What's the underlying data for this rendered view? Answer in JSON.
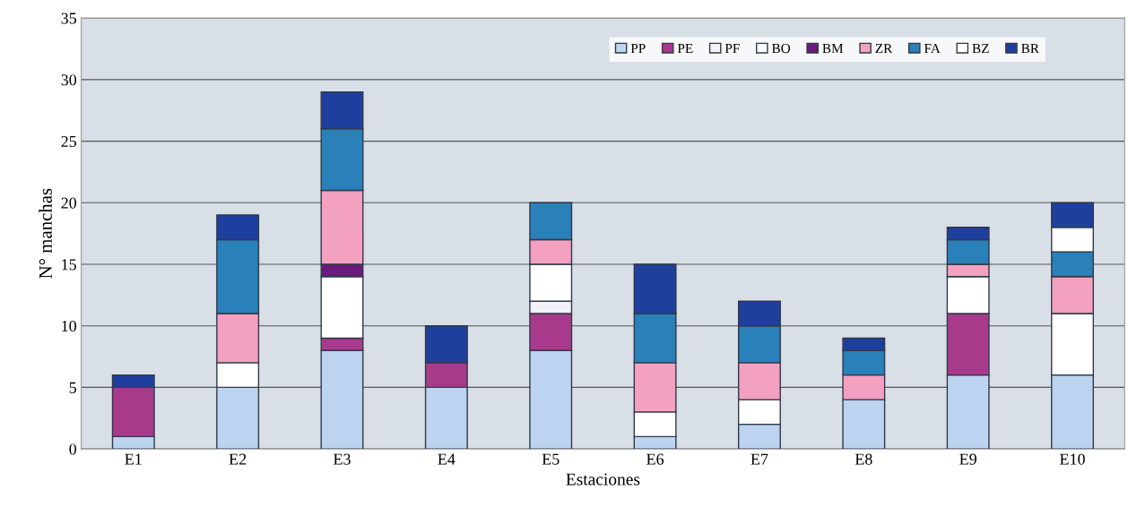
{
  "chart_data": {
    "type": "bar",
    "stacked": true,
    "xlabel": "Estaciones",
    "ylabel": "N° manchas",
    "categories": [
      "E1",
      "E2",
      "E3",
      "E4",
      "E5",
      "E6",
      "E7",
      "E8",
      "E9",
      "E10"
    ],
    "ylim": [
      0,
      35
    ],
    "yticks": [
      0,
      5,
      10,
      15,
      20,
      25,
      30,
      35
    ],
    "grid": "y",
    "legend": "top right",
    "series": [
      {
        "name": "PP",
        "color": "#bcd4f0",
        "values": [
          1,
          5,
          8,
          5,
          8,
          1,
          2,
          4,
          6,
          6
        ]
      },
      {
        "name": "PE",
        "color": "#a83a8c",
        "values": [
          4,
          0,
          1,
          2,
          3,
          0,
          0,
          0,
          5,
          0
        ]
      },
      {
        "name": "PF",
        "color": "#f2f2fa",
        "values": [
          0,
          0,
          0,
          0,
          1,
          0,
          0,
          0,
          0,
          0
        ]
      },
      {
        "name": "BO",
        "color": "#ffffff",
        "values": [
          0,
          2,
          5,
          0,
          3,
          2,
          2,
          0,
          3,
          5
        ]
      },
      {
        "name": "BM",
        "color": "#6a1a7a",
        "values": [
          0,
          0,
          1,
          0,
          0,
          0,
          0,
          0,
          0,
          0
        ]
      },
      {
        "name": "ZR",
        "color": "#f4a0c0",
        "values": [
          0,
          4,
          6,
          0,
          2,
          4,
          3,
          2,
          1,
          3
        ]
      },
      {
        "name": "FA",
        "color": "#2a80b8",
        "values": [
          0,
          6,
          5,
          0,
          3,
          4,
          3,
          2,
          2,
          2
        ]
      },
      {
        "name": "BZ",
        "color": "#ffffff",
        "values": [
          0,
          0,
          0,
          0,
          0,
          0,
          0,
          0,
          0,
          2
        ]
      },
      {
        "name": "BR",
        "color": "#1f3f9f",
        "values": [
          1,
          2,
          3,
          3,
          0,
          4,
          2,
          1,
          1,
          2
        ]
      }
    ]
  }
}
